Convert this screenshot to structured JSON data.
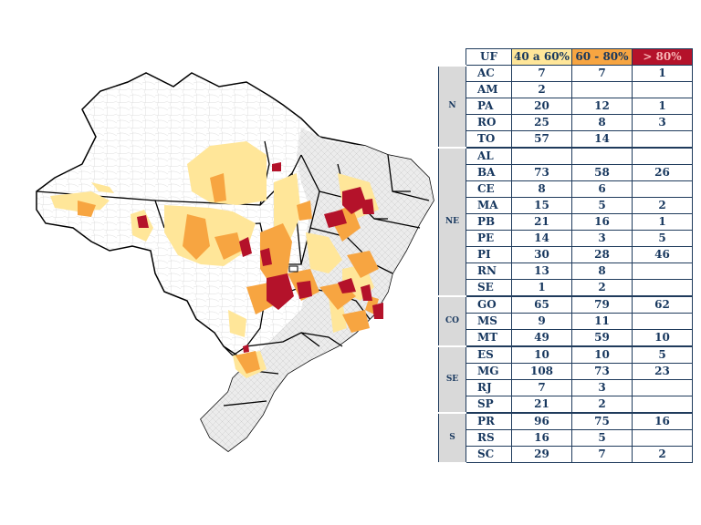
{
  "legend": {
    "col_uf": "UF",
    "col_40_60": "40 a 60%",
    "col_60_80": "60 - 80%",
    "col_80": "> 80%"
  },
  "colors": {
    "class_40_60": "#ffe699",
    "class_60_80": "#f7a541",
    "class_80": "#b4122a",
    "region_bg": "#d9d9d9",
    "text": "#17375e"
  },
  "regions": [
    {
      "name": "N",
      "rows": [
        {
          "uf": "AC",
          "a": "7",
          "b": "7",
          "c": "1"
        },
        {
          "uf": "AM",
          "a": "2",
          "b": "",
          "c": ""
        },
        {
          "uf": "PA",
          "a": "20",
          "b": "12",
          "c": "1"
        },
        {
          "uf": "RO",
          "a": "25",
          "b": "8",
          "c": "3"
        },
        {
          "uf": "TO",
          "a": "57",
          "b": "14",
          "c": ""
        }
      ]
    },
    {
      "name": "NE",
      "rows": [
        {
          "uf": "AL",
          "a": "",
          "b": "",
          "c": ""
        },
        {
          "uf": "BA",
          "a": "73",
          "b": "58",
          "c": "26"
        },
        {
          "uf": "CE",
          "a": "8",
          "b": "6",
          "c": ""
        },
        {
          "uf": "MA",
          "a": "15",
          "b": "5",
          "c": "2"
        },
        {
          "uf": "PB",
          "a": "21",
          "b": "16",
          "c": "1"
        },
        {
          "uf": "PE",
          "a": "14",
          "b": "3",
          "c": "5"
        },
        {
          "uf": "PI",
          "a": "30",
          "b": "28",
          "c": "46"
        },
        {
          "uf": "RN",
          "a": "13",
          "b": "8",
          "c": ""
        },
        {
          "uf": "SE",
          "a": "1",
          "b": "2",
          "c": ""
        }
      ]
    },
    {
      "name": "CO",
      "rows": [
        {
          "uf": "GO",
          "a": "65",
          "b": "79",
          "c": "62"
        },
        {
          "uf": "MS",
          "a": "9",
          "b": "11",
          "c": ""
        },
        {
          "uf": "MT",
          "a": "49",
          "b": "59",
          "c": "10"
        }
      ]
    },
    {
      "name": "SE",
      "rows": [
        {
          "uf": "ES",
          "a": "10",
          "b": "10",
          "c": "5"
        },
        {
          "uf": "MG",
          "a": "108",
          "b": "73",
          "c": "23"
        },
        {
          "uf": "RJ",
          "a": "7",
          "b": "3",
          "c": ""
        },
        {
          "uf": "SP",
          "a": "21",
          "b": "2",
          "c": ""
        }
      ]
    },
    {
      "name": "S",
      "rows": [
        {
          "uf": "PR",
          "a": "96",
          "b": "75",
          "c": "16"
        },
        {
          "uf": "RS",
          "a": "16",
          "b": "5",
          "c": ""
        },
        {
          "uf": "SC",
          "a": "29",
          "b": "7",
          "c": "2"
        }
      ]
    }
  ]
}
